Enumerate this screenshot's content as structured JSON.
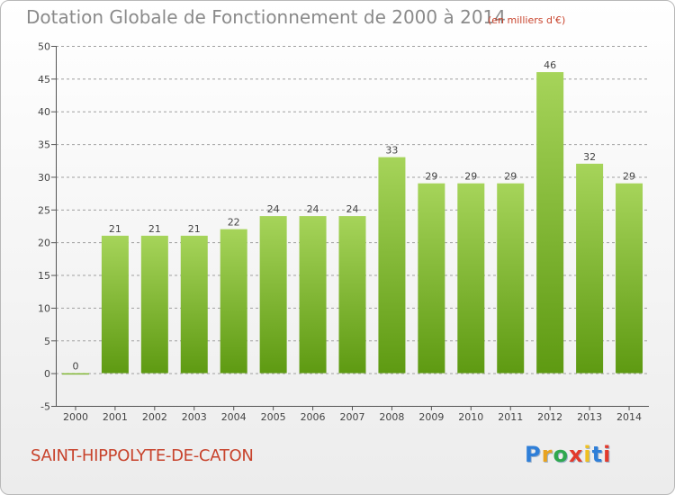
{
  "header": {
    "title": "Dotation Globale de Fonctionnement de 2000 à 2014",
    "subtitle": "(en milliers d'€)"
  },
  "footer": {
    "commune": "SAINT-HIPPOLYTE-DE-CATON",
    "logo_letters": [
      "P",
      "r",
      "o",
      "x",
      "i",
      "t",
      "i"
    ],
    "logo_colors": [
      "#2f7fd8",
      "#e8a320",
      "#2fa84f",
      "#e23a2c",
      "#f0c020",
      "#2f7fd8",
      "#e23a2c"
    ]
  },
  "colors": {
    "bar_top": "#a6d45a",
    "bar_bottom": "#5e9a12",
    "grid": "#a0a0a0",
    "axis": "#555555"
  },
  "chart_data": {
    "type": "bar",
    "categories": [
      "2000",
      "2001",
      "2002",
      "2003",
      "2004",
      "2005",
      "2006",
      "2007",
      "2008",
      "2009",
      "2010",
      "2011",
      "2012",
      "2013",
      "2014"
    ],
    "values": [
      0,
      21,
      21,
      21,
      22,
      24,
      24,
      24,
      33,
      29,
      29,
      29,
      46,
      32,
      29
    ],
    "value_labels": [
      "0",
      "21",
      "21",
      "21",
      "22",
      "24",
      "24",
      "24",
      "33",
      "29",
      "29",
      "29",
      "46",
      "32",
      "29"
    ],
    "yticks": [
      "-5",
      "0",
      "5",
      "10",
      "15",
      "20",
      "25",
      "30",
      "35",
      "40",
      "45",
      "50"
    ],
    "ylim": [
      -5,
      50
    ],
    "title": "Dotation Globale de Fonctionnement de 2000 à 2014",
    "xlabel": "",
    "ylabel": "",
    "grid": true
  }
}
